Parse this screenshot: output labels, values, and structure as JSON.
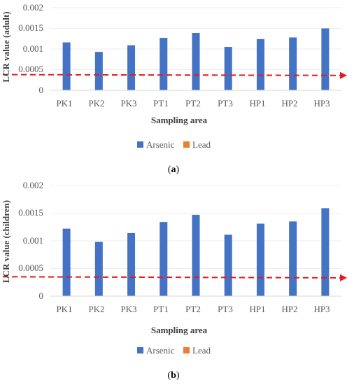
{
  "chart_data": [
    {
      "type": "bar",
      "panel_label": "a",
      "categories": [
        "PK1",
        "PK2",
        "PK3",
        "PT1",
        "PT2",
        "PT3",
        "HP1",
        "HP2",
        "HP3"
      ],
      "series": [
        {
          "name": "Arsenic",
          "color": "#4472C4",
          "values": [
            0.00116,
            0.00093,
            0.00109,
            0.00127,
            0.00139,
            0.00105,
            0.00124,
            0.00128,
            0.0015
          ]
        },
        {
          "name": "Lead",
          "color": "#ED7D31",
          "values": [
            0,
            0,
            0,
            0,
            0,
            0,
            0,
            0,
            0
          ]
        }
      ],
      "yticks": [
        "0",
        "0.0005",
        "0.001",
        "0.0015",
        "0.002"
      ],
      "ylim": [
        0,
        0.002
      ],
      "xlabel": "Sampling area",
      "ylabel": "LCR value (adult)",
      "reference_line": {
        "y_start": 0.00038,
        "y_end": 0.00036,
        "color": "#E31A1C",
        "style": "dashed-arrow"
      },
      "legend_position": "bottom"
    },
    {
      "type": "bar",
      "panel_label": "b",
      "categories": [
        "PK1",
        "PK2",
        "PK3",
        "PT1",
        "PT2",
        "PT3",
        "HP1",
        "HP2",
        "HP3"
      ],
      "series": [
        {
          "name": "Arsenic",
          "color": "#4472C4",
          "values": [
            0.00122,
            0.00098,
            0.00114,
            0.00134,
            0.00147,
            0.00111,
            0.00131,
            0.00135,
            0.00159
          ]
        },
        {
          "name": "Lead",
          "color": "#ED7D31",
          "values": [
            0,
            0,
            0,
            0,
            0,
            0,
            0,
            0,
            0
          ]
        }
      ],
      "yticks": [
        "0",
        "0.0005",
        "0.001",
        "0.0015",
        "0.002"
      ],
      "ylim": [
        0,
        0.002
      ],
      "xlabel": "Sampling area",
      "ylabel": "LCR value (children)",
      "reference_line": {
        "y_start": 0.00035,
        "y_end": 0.00033,
        "color": "#E31A1C",
        "style": "dashed-arrow"
      },
      "legend_position": "bottom"
    }
  ]
}
